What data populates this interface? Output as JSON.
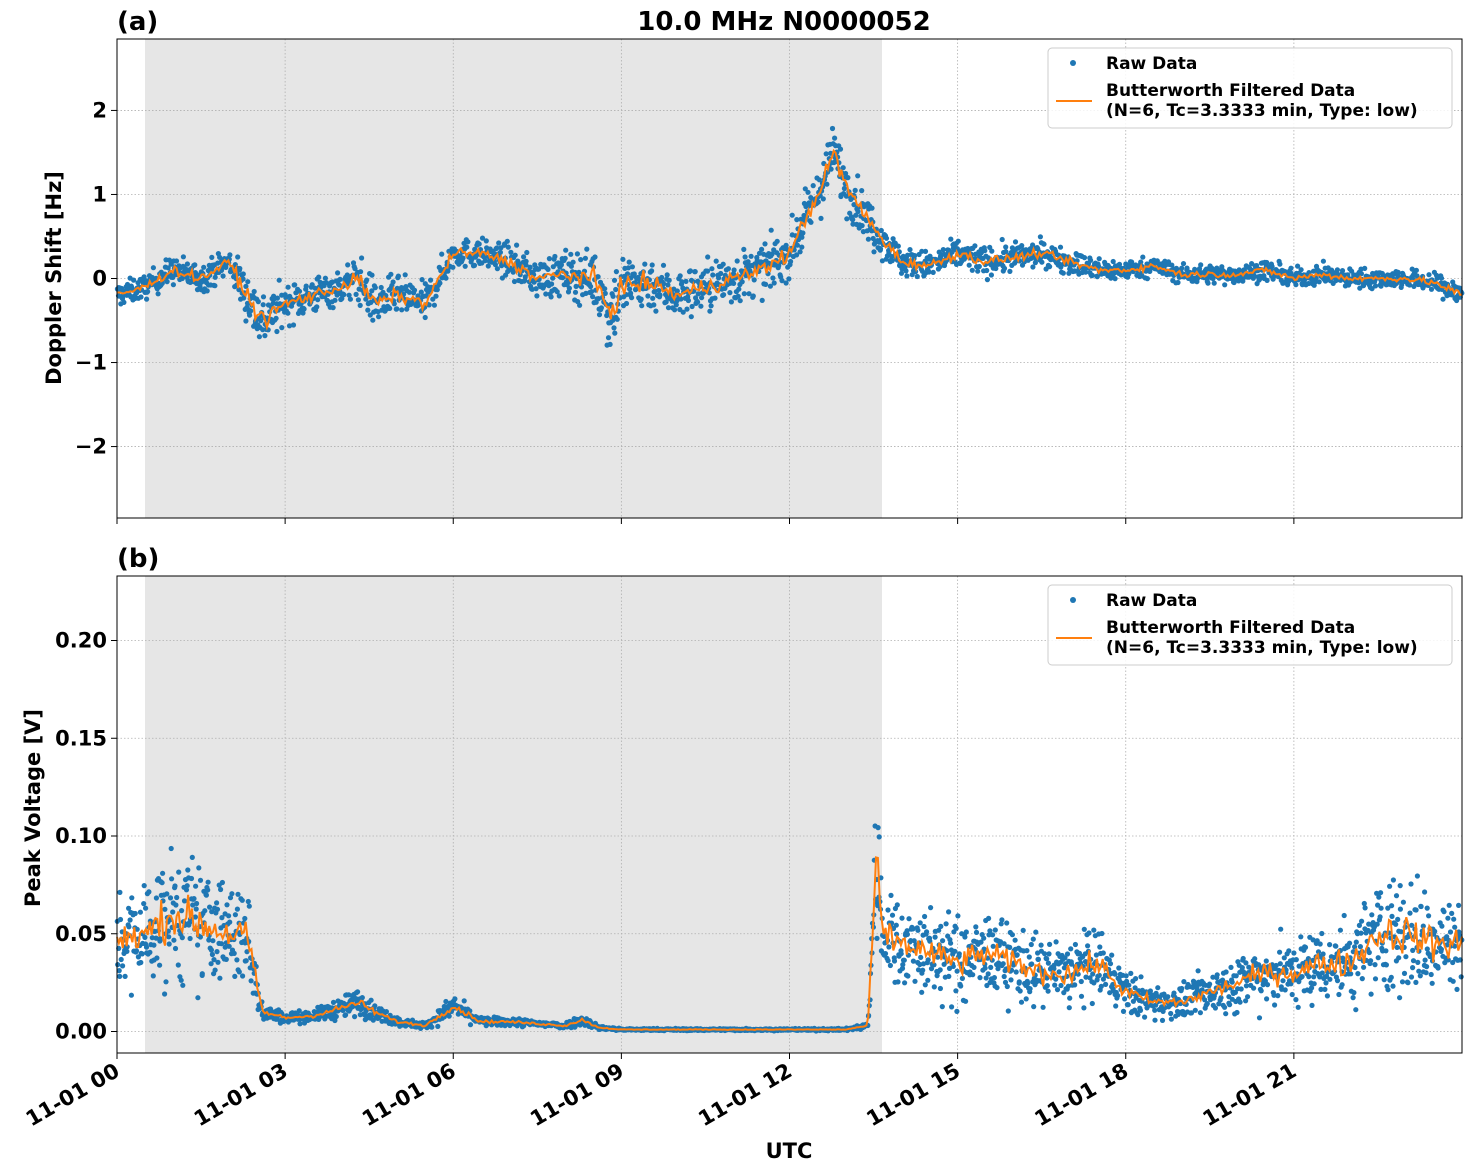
{
  "figure_title": "10.0 MHz N0000052",
  "x_axis_label": "UTC",
  "x_tick_labels": [
    "11-01 00",
    "11-01 03",
    "11-01 06",
    "11-01 09",
    "11-01 12",
    "11-01 15",
    "11-01 18",
    "11-01 21"
  ],
  "colors": {
    "raw": "#1f77b4",
    "filtered": "#ff7f0e",
    "shade": "#e6e6e6",
    "grid": "#b0b0b0"
  },
  "chart_data": [
    {
      "type": "scatter",
      "panel_label": "(a)",
      "ylabel": "Doppler Shift [Hz]",
      "xlim": [
        0,
        24
      ],
      "ylim": [
        -2.85,
        2.85
      ],
      "yticks": [
        -2,
        -1,
        0,
        1,
        2
      ],
      "ytick_labels": [
        "−2",
        "−1",
        "0",
        "1",
        "2"
      ],
      "grid": true,
      "legend_position": "top-right",
      "shaded_region": [
        0.5,
        13.65
      ],
      "series": [
        {
          "name": "Raw Data",
          "style": "points",
          "x": [
            0.0,
            0.5,
            1.0,
            1.5,
            2.0,
            2.4,
            2.6,
            3.0,
            3.5,
            4.0,
            4.3,
            4.6,
            5.0,
            5.5,
            6.0,
            6.5,
            7.0,
            7.5,
            8.0,
            8.5,
            8.8,
            9.0,
            9.5,
            10.0,
            10.5,
            11.0,
            11.5,
            12.0,
            12.5,
            12.8,
            13.0,
            13.5,
            14.0,
            14.5,
            15.0,
            15.5,
            16.0,
            16.5,
            17.0,
            17.5,
            18.0,
            18.5,
            19.0,
            19.5,
            20.0,
            20.5,
            21.0,
            21.5,
            22.0,
            22.5,
            23.0,
            23.5,
            24.0
          ],
          "y": [
            -0.2,
            -0.1,
            0.1,
            0.0,
            0.2,
            -0.3,
            -0.5,
            -0.3,
            -0.2,
            -0.1,
            0.0,
            -0.3,
            -0.2,
            -0.3,
            0.3,
            0.3,
            0.2,
            0.0,
            0.05,
            0.0,
            -0.4,
            -0.1,
            -0.05,
            -0.2,
            -0.1,
            0.0,
            0.1,
            0.3,
            1.0,
            1.5,
            1.1,
            0.6,
            0.2,
            0.15,
            0.3,
            0.2,
            0.25,
            0.3,
            0.2,
            0.1,
            0.1,
            0.15,
            0.05,
            0.05,
            0.05,
            0.1,
            0.0,
            0.05,
            0.0,
            0.0,
            0.0,
            -0.05,
            -0.2
          ],
          "spread": [
            0.25,
            0.25,
            0.3,
            0.3,
            0.3,
            0.6,
            0.6,
            0.4,
            0.4,
            0.35,
            0.5,
            0.5,
            0.4,
            0.4,
            0.3,
            0.3,
            0.35,
            0.4,
            0.5,
            0.55,
            0.9,
            0.7,
            0.55,
            0.5,
            0.55,
            0.55,
            0.5,
            0.5,
            0.55,
            0.6,
            0.55,
            0.45,
            0.3,
            0.3,
            0.3,
            0.3,
            0.3,
            0.25,
            0.25,
            0.25,
            0.2,
            0.2,
            0.2,
            0.2,
            0.2,
            0.2,
            0.2,
            0.2,
            0.2,
            0.2,
            0.2,
            0.2,
            0.3
          ]
        },
        {
          "name": "Butterworth Filtered Data\n(N=6, Tc=3.3333 min, Type: low)",
          "style": "line",
          "x": [
            0.0,
            0.5,
            1.0,
            1.5,
            2.0,
            2.4,
            2.6,
            3.0,
            3.5,
            4.0,
            4.3,
            4.6,
            5.0,
            5.5,
            6.0,
            6.5,
            7.0,
            7.5,
            8.0,
            8.5,
            8.8,
            9.0,
            9.5,
            10.0,
            10.5,
            11.0,
            11.5,
            12.0,
            12.5,
            12.8,
            13.0,
            13.5,
            14.0,
            14.5,
            15.0,
            15.5,
            16.0,
            16.5,
            17.0,
            17.5,
            18.0,
            18.5,
            19.0,
            19.5,
            20.0,
            20.5,
            21.0,
            21.5,
            22.0,
            22.5,
            23.0,
            23.5,
            24.0
          ],
          "y": [
            -0.2,
            -0.1,
            0.1,
            0.0,
            0.2,
            -0.3,
            -0.5,
            -0.3,
            -0.2,
            -0.1,
            0.0,
            -0.3,
            -0.2,
            -0.3,
            0.3,
            0.3,
            0.2,
            0.0,
            0.05,
            0.0,
            -0.4,
            -0.1,
            -0.05,
            -0.2,
            -0.1,
            0.0,
            0.1,
            0.3,
            1.0,
            1.5,
            1.1,
            0.6,
            0.2,
            0.15,
            0.3,
            0.2,
            0.25,
            0.3,
            0.2,
            0.1,
            0.1,
            0.15,
            0.05,
            0.05,
            0.05,
            0.1,
            0.0,
            0.05,
            0.0,
            0.0,
            0.0,
            -0.05,
            -0.2
          ]
        }
      ]
    },
    {
      "type": "scatter",
      "panel_label": "(b)",
      "ylabel": "Peak Voltage [V]",
      "xlabel": "UTC",
      "xlim": [
        0,
        24
      ],
      "ylim": [
        -0.011,
        0.233
      ],
      "yticks": [
        0.0,
        0.05,
        0.1,
        0.15,
        0.2
      ],
      "ytick_labels": [
        "0.00",
        "0.05",
        "0.10",
        "0.15",
        "0.20"
      ],
      "grid": true,
      "legend_position": "top-right",
      "shaded_region": [
        0.5,
        13.65
      ],
      "series": [
        {
          "name": "Raw Data",
          "style": "points",
          "x": [
            0.0,
            0.5,
            1.0,
            1.5,
            2.0,
            2.3,
            2.6,
            3.0,
            3.5,
            4.0,
            4.3,
            4.6,
            5.0,
            5.5,
            6.0,
            6.5,
            7.0,
            7.5,
            8.0,
            8.3,
            8.6,
            9.0,
            10.0,
            11.0,
            12.0,
            13.0,
            13.4,
            13.55,
            13.65,
            14.0,
            14.5,
            15.0,
            15.5,
            16.0,
            16.5,
            17.0,
            17.5,
            18.0,
            18.5,
            19.0,
            19.5,
            20.0,
            20.5,
            21.0,
            21.5,
            22.0,
            22.5,
            23.0,
            23.5,
            24.0
          ],
          "y": [
            0.045,
            0.05,
            0.06,
            0.055,
            0.05,
            0.05,
            0.01,
            0.007,
            0.008,
            0.012,
            0.015,
            0.01,
            0.005,
            0.003,
            0.013,
            0.005,
            0.005,
            0.004,
            0.003,
            0.006,
            0.002,
            0.001,
            0.001,
            0.001,
            0.001,
            0.001,
            0.003,
            0.09,
            0.05,
            0.045,
            0.04,
            0.035,
            0.04,
            0.035,
            0.03,
            0.03,
            0.035,
            0.02,
            0.015,
            0.015,
            0.02,
            0.025,
            0.03,
            0.03,
            0.035,
            0.035,
            0.05,
            0.05,
            0.045,
            0.045
          ],
          "spread": [
            0.04,
            0.05,
            0.06,
            0.055,
            0.045,
            0.05,
            0.008,
            0.005,
            0.005,
            0.01,
            0.012,
            0.008,
            0.004,
            0.003,
            0.01,
            0.004,
            0.004,
            0.003,
            0.003,
            0.005,
            0.002,
            0.001,
            0.001,
            0.001,
            0.001,
            0.001,
            0.003,
            0.08,
            0.045,
            0.04,
            0.04,
            0.04,
            0.035,
            0.035,
            0.03,
            0.035,
            0.03,
            0.02,
            0.015,
            0.015,
            0.02,
            0.025,
            0.03,
            0.03,
            0.035,
            0.04,
            0.05,
            0.055,
            0.05,
            0.05
          ]
        },
        {
          "name": "Butterworth Filtered Data\n(N=6, Tc=3.3333 min, Type: low)",
          "style": "line",
          "x": [
            0.0,
            0.5,
            1.0,
            1.5,
            2.0,
            2.3,
            2.6,
            3.0,
            3.5,
            4.0,
            4.3,
            4.6,
            5.0,
            5.5,
            6.0,
            6.5,
            7.0,
            7.5,
            8.0,
            8.3,
            8.6,
            9.0,
            10.0,
            11.0,
            12.0,
            13.0,
            13.4,
            13.55,
            13.65,
            14.0,
            14.5,
            15.0,
            15.5,
            16.0,
            16.5,
            17.0,
            17.5,
            18.0,
            18.5,
            19.0,
            19.5,
            20.0,
            20.5,
            21.0,
            21.5,
            22.0,
            22.5,
            23.0,
            23.5,
            24.0
          ],
          "y": [
            0.045,
            0.05,
            0.06,
            0.055,
            0.05,
            0.05,
            0.01,
            0.007,
            0.008,
            0.012,
            0.015,
            0.01,
            0.005,
            0.003,
            0.013,
            0.005,
            0.005,
            0.004,
            0.003,
            0.006,
            0.002,
            0.001,
            0.001,
            0.001,
            0.001,
            0.001,
            0.003,
            0.09,
            0.05,
            0.045,
            0.04,
            0.035,
            0.04,
            0.035,
            0.03,
            0.03,
            0.035,
            0.02,
            0.015,
            0.015,
            0.02,
            0.025,
            0.03,
            0.03,
            0.035,
            0.035,
            0.05,
            0.05,
            0.045,
            0.045
          ]
        }
      ]
    }
  ]
}
